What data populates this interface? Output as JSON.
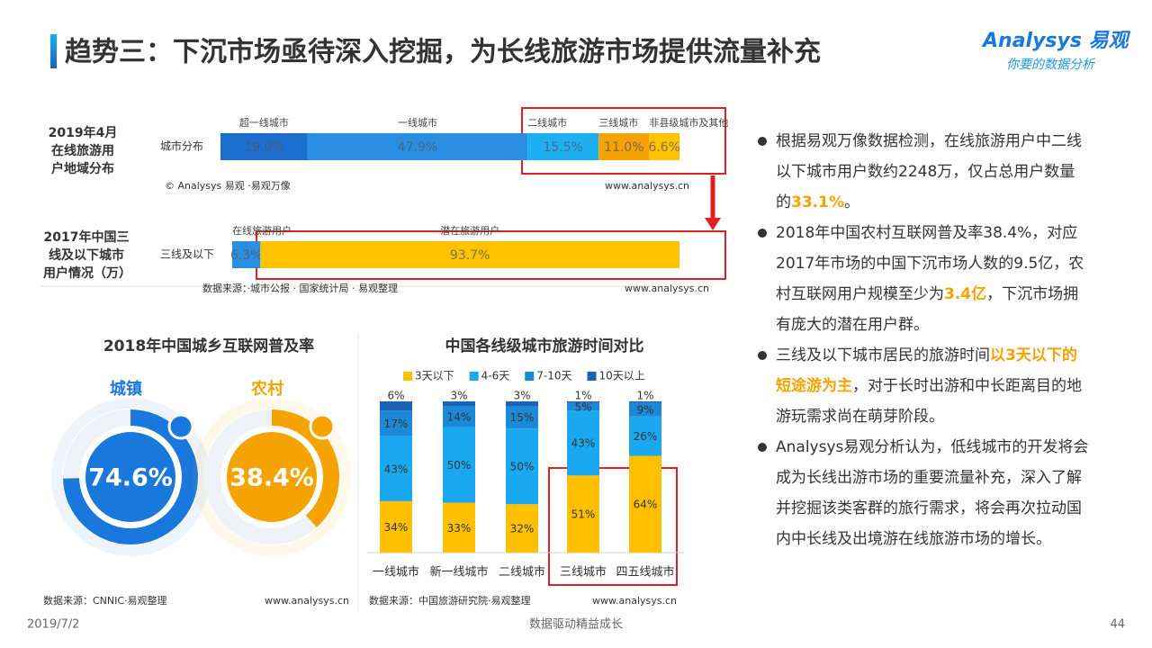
{
  "header": {
    "title": "趋势三：下沉市场亟待深入挖掘，为长线旅游市场提供流量补充",
    "logo": "Analysys 易观",
    "slogan": "你要的数据分析"
  },
  "chart_data": [
    {
      "type": "hbar-stacked",
      "title": "2019年4月在线旅游用户地域分布",
      "categories": [
        "城市分布"
      ],
      "series": [
        {
          "name": "超一线城市",
          "color": "#1d6fce",
          "values": [
            19.0
          ],
          "value_labels": [
            "19.0%"
          ]
        },
        {
          "name": "一线城市",
          "color": "#2a8fe2",
          "values": [
            47.9
          ],
          "value_labels": [
            "47.9%"
          ]
        },
        {
          "name": "二线城市",
          "color": "#1cb0f2",
          "values": [
            15.5
          ],
          "value_labels": [
            "15.5%"
          ]
        },
        {
          "name": "三线城市",
          "color": "#f5a300",
          "values": [
            11.0
          ],
          "value_labels": [
            "11.0%"
          ]
        },
        {
          "name": "非县级城市及其他",
          "color": "#ffc300",
          "values": [
            6.6
          ],
          "value_labels": [
            "6.6%"
          ]
        }
      ],
      "source": "© Analysys 易观 ·易观万像",
      "url": "www.analysys.cn"
    },
    {
      "type": "hbar-stacked",
      "title": "2017年中国三线及以下城市用户情况（万）",
      "categories": [
        "三线及以下"
      ],
      "series": [
        {
          "name": "在线旅游用户",
          "color": "#2a8fe2",
          "values": [
            6.3
          ],
          "value_labels": [
            "6.3%"
          ]
        },
        {
          "name": "潜在旅游用户",
          "color": "#ffc300",
          "values": [
            93.7
          ],
          "value_labels": [
            "93.7%"
          ]
        }
      ],
      "source": "数据来源：·城市公报 · 国家统计局 · 易观整理",
      "url": "www.analysys.cn"
    },
    {
      "type": "donut",
      "title": "2018年中国城乡互联网普及率",
      "categories": [
        "城镇",
        "农村"
      ],
      "values": [
        74.6,
        38.4
      ],
      "value_labels": [
        "74.6%",
        "38.4%"
      ],
      "colors": [
        "#1a78dc",
        "#f5a300"
      ],
      "source": "数据来源：CNNIC·易观整理",
      "url": "www.analysys.cn"
    },
    {
      "type": "column-stacked",
      "title": "中国各线级城市旅游时间对比",
      "categories": [
        "一线城市",
        "新一线城市",
        "二线城市",
        "三线城市",
        "四五线城市"
      ],
      "series": [
        {
          "name": "3天以下",
          "color": "#ffc000",
          "values": [
            34,
            33,
            32,
            51,
            64
          ],
          "value_labels": [
            "34%",
            "33%",
            "32%",
            "51%",
            "64%"
          ]
        },
        {
          "name": "4-6天",
          "color": "#1aa8f0",
          "values": [
            43,
            50,
            50,
            43,
            26
          ],
          "value_labels": [
            "43%",
            "50%",
            "50%",
            "43%",
            "26%"
          ]
        },
        {
          "name": "7-10天",
          "color": "#1c88d8",
          "values": [
            17,
            14,
            15,
            5,
            9
          ],
          "value_labels": [
            "17%",
            "14%",
            "15%",
            "5%",
            "9%"
          ]
        },
        {
          "name": "10天以上",
          "color": "#1a62b6",
          "values": [
            6,
            3,
            3,
            1,
            1
          ],
          "value_labels": [
            "6%",
            "3%",
            "3%",
            "1%",
            "1%"
          ]
        }
      ],
      "source": "数据来源：中国旅游研究院·易观整理",
      "url": "www.analysys.cn"
    }
  ],
  "bullets": [
    {
      "parts": [
        "根据易观万像数据检测，在线旅游用户中二线以下城市用户数约2248万，仅占总用户数量的",
        "33.1%",
        "。"
      ]
    },
    {
      "parts": [
        "2018年中国农村互联网普及率38.4%，对应2017年市场的中国下沉市场人数的9.5亿，农村互联网用户规模至少为",
        "3.4亿",
        "，下沉市场拥有庞大的潜在用户群。"
      ]
    },
    {
      "parts": [
        "三线及以下城市居民的旅游时间",
        "以3天以下的短途游为主",
        "，对于长时出游和中长距离目的地游玩需求尚在萌芽阶段。"
      ]
    },
    {
      "parts": [
        "Analysys易观分析认为，低线城市的开发将会成为长线出游市场的重要流量补充，深入了解并挖掘该类客群的旅行需求，将会再次拉动国内中长线及出境游在线旅游市场的增长。"
      ]
    }
  ],
  "footer": {
    "date": "2019/7/2",
    "slogan": "数据驱动精益成长",
    "page": "44"
  }
}
